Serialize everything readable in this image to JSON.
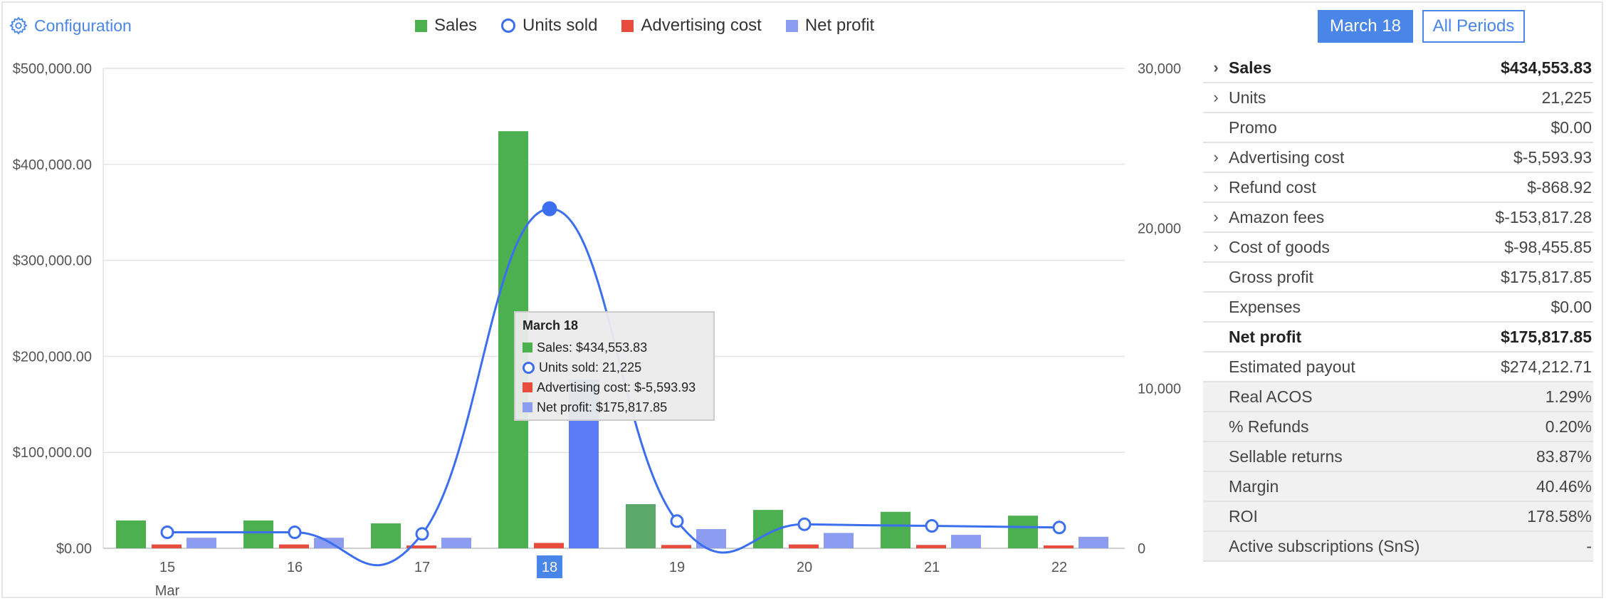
{
  "header": {
    "config_label": "Configuration",
    "period_active": "March 18",
    "period_all": "All Periods"
  },
  "legend": [
    {
      "label": "Sales",
      "color": "#4caf50",
      "kind": "bar"
    },
    {
      "label": "Units sold",
      "color": "#3b6ff0",
      "kind": "line"
    },
    {
      "label": "Advertising cost",
      "color": "#e74c3c",
      "kind": "bar"
    },
    {
      "label": "Net profit",
      "color": "#8c9cf0",
      "kind": "bar"
    }
  ],
  "tooltip": {
    "title": "March 18",
    "rows": [
      {
        "text": "Sales: $434,553.83",
        "color": "#4caf50",
        "kind": "bar"
      },
      {
        "text": "Units sold: 21,225",
        "color": "#3b6ff0",
        "kind": "line"
      },
      {
        "text": "Advertising cost: $-5,593.93",
        "color": "#e74c3c",
        "kind": "bar"
      },
      {
        "text": "Net profit: $175,817.85",
        "color": "#8c9cf0",
        "kind": "bar"
      }
    ]
  },
  "chart_data": {
    "type": "bar",
    "categories": [
      "15",
      "16",
      "17",
      "18",
      "19",
      "20",
      "21",
      "22"
    ],
    "x_sublabel": "Mar",
    "selected_category": "18",
    "y_left": {
      "ticks": [
        "$0.00",
        "$100,000.00",
        "$200,000.00",
        "$300,000.00",
        "$400,000.00",
        "$500,000.00"
      ],
      "ylim": [
        0,
        500000
      ]
    },
    "y_right": {
      "ticks": [
        "0",
        "10,000",
        "20,000",
        "30,000"
      ],
      "ylim": [
        0,
        30000
      ]
    },
    "grid": true,
    "legend_position": "top",
    "series": [
      {
        "name": "Sales",
        "axis": "left",
        "type": "bar",
        "color": "#4caf50",
        "values": [
          29000,
          29000,
          26000,
          434553.83,
          46000,
          40000,
          38000,
          34000
        ]
      },
      {
        "name": "Advertising cost",
        "axis": "left",
        "type": "bar",
        "color": "#e74c3c",
        "values": [
          4000,
          4000,
          3000,
          5593.93,
          3500,
          4000,
          3500,
          3000
        ]
      },
      {
        "name": "Net profit",
        "axis": "left",
        "type": "bar",
        "color": "#8c9cf0",
        "values": [
          11000,
          11000,
          11000,
          175817.85,
          20000,
          16000,
          14000,
          12000
        ]
      },
      {
        "name": "Units sold",
        "axis": "right",
        "type": "line",
        "color": "#3b6ff0",
        "values": [
          1000,
          1000,
          900,
          21225,
          1700,
          1500,
          1400,
          1300
        ]
      }
    ]
  },
  "summary": [
    {
      "label": "Sales",
      "value": "$434,553.83",
      "expandable": true,
      "bold": true,
      "shaded": false
    },
    {
      "label": "Units",
      "value": "21,225",
      "expandable": true,
      "bold": false,
      "shaded": false
    },
    {
      "label": "Promo",
      "value": "$0.00",
      "expandable": false,
      "bold": false,
      "shaded": false
    },
    {
      "label": "Advertising cost",
      "value": "$-5,593.93",
      "expandable": true,
      "bold": false,
      "shaded": false
    },
    {
      "label": "Refund cost",
      "value": "$-868.92",
      "expandable": true,
      "bold": false,
      "shaded": false
    },
    {
      "label": "Amazon fees",
      "value": "$-153,817.28",
      "expandable": true,
      "bold": false,
      "shaded": false
    },
    {
      "label": "Cost of goods",
      "value": "$-98,455.85",
      "expandable": true,
      "bold": false,
      "shaded": false
    },
    {
      "label": "Gross profit",
      "value": "$175,817.85",
      "expandable": false,
      "bold": false,
      "shaded": false
    },
    {
      "label": "Expenses",
      "value": "$0.00",
      "expandable": false,
      "bold": false,
      "shaded": false
    },
    {
      "label": "Net profit",
      "value": "$175,817.85",
      "expandable": false,
      "bold": true,
      "shaded": false
    },
    {
      "label": "Estimated payout",
      "value": "$274,212.71",
      "expandable": false,
      "bold": false,
      "shaded": false
    },
    {
      "label": "Real ACOS",
      "value": "1.29%",
      "expandable": false,
      "bold": false,
      "shaded": true
    },
    {
      "label": "% Refunds",
      "value": "0.20%",
      "expandable": false,
      "bold": false,
      "shaded": true
    },
    {
      "label": "Sellable returns",
      "value": "83.87%",
      "expandable": false,
      "bold": false,
      "shaded": true
    },
    {
      "label": "Margin",
      "value": "40.46%",
      "expandable": false,
      "bold": false,
      "shaded": true
    },
    {
      "label": "ROI",
      "value": "178.58%",
      "expandable": false,
      "bold": false,
      "shaded": true
    },
    {
      "label": "Active subscriptions (SnS)",
      "value": "-",
      "expandable": false,
      "bold": false,
      "shaded": true
    }
  ]
}
